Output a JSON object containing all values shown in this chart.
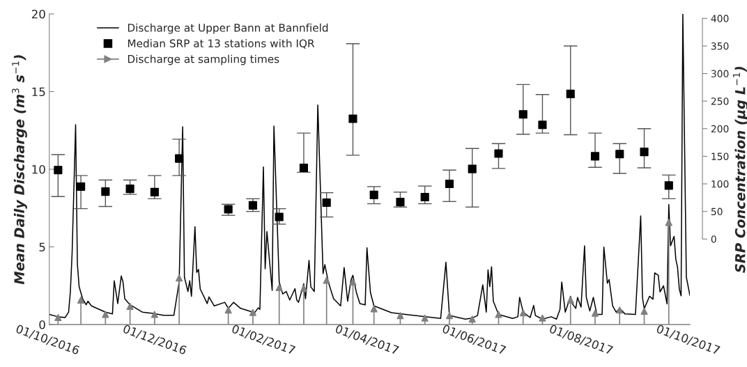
{
  "chart_data": {
    "type": "line",
    "ylabel": "Mean Daily Discharge (m$^{3}$ s$^{−1}$)",
    "y2label": "SRP Concentration (μg L$^{−1}$)",
    "xlim": [
      "2016-10-01",
      "2017-10-01"
    ],
    "xticks": [
      {
        "value": "2016-10-01",
        "label": "01/10/2016"
      },
      {
        "value": "2016-12-01",
        "label": "01/12/2016"
      },
      {
        "value": "2017-02-01",
        "label": "01/02/2017"
      },
      {
        "value": "2017-04-01",
        "label": "01/04/2017"
      },
      {
        "value": "2017-06-01",
        "label": "01/06/2017"
      },
      {
        "value": "2017-08-01",
        "label": "01/08/2017"
      },
      {
        "value": "2017-10-01",
        "label": "01/10/2017"
      }
    ],
    "ylim": [
      0,
      20
    ],
    "yticks": [
      0,
      5,
      10,
      15,
      20
    ],
    "y2lim": [
      -155,
      408
    ],
    "y2ticks": [
      0,
      50,
      100,
      150,
      200,
      250,
      300,
      350,
      400
    ],
    "grid": false,
    "legend": "top left",
    "series": [
      {
        "name": "Discharge at Upper Bann at Bannfield",
        "color": "#000000",
        "x": [
          "2016-10-01",
          "2016-10-06",
          "2016-10-10",
          "2016-10-12",
          "2016-10-13",
          "2016-10-14",
          "2016-10-16",
          "2016-10-17",
          "2016-10-18",
          "2016-10-20",
          "2016-10-22",
          "2016-10-23",
          "2016-10-25",
          "2016-11-02",
          "2016-11-06",
          "2016-11-07",
          "2016-11-09",
          "2016-11-11",
          "2016-11-12",
          "2016-11-13",
          "2016-11-16",
          "2016-11-23",
          "2016-11-29",
          "2016-12-05",
          "2016-12-11",
          "2016-12-14",
          "2016-12-16",
          "2016-12-17",
          "2016-12-19",
          "2016-12-20",
          "2016-12-21",
          "2016-12-23",
          "2016-12-24",
          "2016-12-25",
          "2016-12-26",
          "2016-12-30",
          "2016-12-31",
          "2017-01-03",
          "2017-01-09",
          "2017-01-11",
          "2017-01-14",
          "2017-01-18",
          "2017-01-26",
          "2017-01-28",
          "2017-01-29",
          "2017-01-31",
          "2017-02-01",
          "2017-02-02",
          "2017-02-05",
          "2017-02-06",
          "2017-02-09",
          "2017-02-11",
          "2017-02-13",
          "2017-02-15",
          "2017-02-18",
          "2017-02-19",
          "2017-02-20",
          "2017-02-23",
          "2017-02-24",
          "2017-02-26",
          "2017-02-27",
          "2017-03-01",
          "2017-03-03",
          "2017-03-06",
          "2017-03-07",
          "2017-03-09",
          "2017-03-12",
          "2017-03-16",
          "2017-03-18",
          "2017-03-20",
          "2017-03-22",
          "2017-03-23",
          "2017-03-25",
          "2017-03-27",
          "2017-03-30",
          "2017-03-31",
          "2017-04-02",
          "2017-04-04",
          "2017-04-14",
          "2017-04-22",
          "2017-05-12",
          "2017-05-15",
          "2017-05-17",
          "2017-05-26",
          "2017-05-30",
          "2017-06-02",
          "2017-06-05",
          "2017-06-07",
          "2017-06-08",
          "2017-06-09",
          "2017-06-10",
          "2017-06-11",
          "2017-06-14",
          "2017-06-22",
          "2017-06-25",
          "2017-06-26",
          "2017-06-28",
          "2017-07-02",
          "2017-07-04",
          "2017-07-05",
          "2017-07-09",
          "2017-07-14",
          "2017-07-17",
          "2017-07-19",
          "2017-07-20",
          "2017-07-22",
          "2017-07-25",
          "2017-07-26",
          "2017-07-28",
          "2017-07-29",
          "2017-07-31",
          "2017-08-02",
          "2017-08-03",
          "2017-08-05",
          "2017-08-07",
          "2017-08-09",
          "2017-08-12",
          "2017-08-13",
          "2017-08-15",
          "2017-08-16",
          "2017-08-18",
          "2017-08-20",
          "2017-08-22",
          "2017-08-25",
          "2017-08-31",
          "2017-09-03",
          "2017-09-04",
          "2017-09-05",
          "2017-09-08",
          "2017-09-10",
          "2017-09-11",
          "2017-09-13",
          "2017-09-14",
          "2017-09-16",
          "2017-09-18",
          "2017-09-19",
          "2017-09-20",
          "2017-09-22",
          "2017-09-23",
          "2017-09-24",
          "2017-09-25",
          "2017-09-26",
          "2017-09-27",
          "2017-09-29",
          "2017-10-01"
        ],
        "values": [
          0.65,
          0.5,
          0.45,
          0.8,
          2.1,
          4.6,
          12.87,
          3.9,
          2.43,
          1.66,
          1.27,
          1.5,
          1.2,
          0.8,
          0.69,
          2.82,
          1.35,
          3.13,
          2.74,
          1.66,
          1.27,
          0.8,
          0.72,
          0.6,
          0.6,
          2.74,
          12.74,
          3.05,
          2.13,
          2.82,
          1.82,
          6.3,
          3.36,
          3.55,
          2.29,
          1.35,
          1.78,
          1.2,
          1.43,
          1.04,
          1.43,
          1.04,
          0.76,
          1.07,
          0.98,
          10.15,
          3.59,
          5.99,
          2.2,
          12.78,
          2.74,
          1.97,
          2.13,
          1.58,
          2.31,
          1.58,
          1.43,
          2.62,
          1.66,
          4.13,
          2.43,
          2.13,
          14.14,
          3.28,
          3.86,
          2.74,
          1.66,
          1.2,
          3.67,
          1.5,
          2.9,
          3.17,
          2.05,
          1.35,
          1.27,
          4.94,
          2.05,
          1.2,
          0.76,
          0.65,
          0.39,
          4.01,
          0.58,
          0.35,
          0.42,
          0.58,
          2.56,
          0.8,
          3.52,
          2.44,
          3.72,
          1.5,
          0.65,
          0.39,
          0.5,
          1.75,
          0.8,
          0.45,
          1.23,
          0.58,
          0.35,
          0.5,
          0.35,
          0.98,
          2.74,
          0.8,
          1.82,
          1.35,
          1.04,
          1.75,
          1.12,
          5.07,
          1.75,
          0.87,
          1.75,
          0.65,
          0.65,
          4.99,
          2.66,
          2.9,
          1.2,
          0.8,
          1.04,
          0.69,
          0.65,
          7.0,
          1.75,
          1.02,
          1.82,
          1.63,
          3.33,
          3.17,
          2.1,
          2.49,
          1.33,
          7.72,
          5.07,
          5.68,
          4.21,
          3.67,
          2.28,
          1.85,
          20,
          3.05,
          1.89
        ]
      },
      {
        "name": "Median SRP at 13 stations with IQR",
        "type": "scatter",
        "axis": "y2",
        "marker": "square",
        "color": "#000000",
        "x": [
          "2016-10-06",
          "2016-10-19",
          "2016-11-02",
          "2016-11-16",
          "2016-11-30",
          "2016-12-14",
          "2017-01-11",
          "2017-01-25",
          "2017-02-09",
          "2017-02-23",
          "2017-03-08",
          "2017-03-23",
          "2017-04-04",
          "2017-04-19",
          "2017-05-03",
          "2017-05-17",
          "2017-05-30",
          "2017-06-14",
          "2017-06-28",
          "2017-07-09",
          "2017-07-25",
          "2017-08-08",
          "2017-08-22",
          "2017-09-05",
          "2017-09-19"
        ],
        "values": [
          125,
          95,
          86,
          91,
          85,
          146,
          54,
          61,
          40,
          129,
          66,
          218,
          80,
          67,
          76,
          100,
          127,
          155,
          226,
          207,
          263,
          150,
          154,
          158,
          97
        ],
        "errors": [
          [
            77,
            153
          ],
          [
            55,
            115
          ],
          [
            59,
            107
          ],
          [
            81,
            107
          ],
          [
            73,
            115
          ],
          [
            115,
            181
          ],
          [
            43,
            63
          ],
          [
            50,
            73
          ],
          [
            27,
            55
          ],
          [
            121,
            192
          ],
          [
            40,
            84
          ],
          [
            152,
            354
          ],
          [
            64,
            95
          ],
          [
            58,
            85
          ],
          [
            64,
            96
          ],
          [
            68,
            125
          ],
          [
            58,
            164
          ],
          [
            128,
            173
          ],
          [
            190,
            280
          ],
          [
            192,
            262
          ],
          [
            189,
            350
          ],
          [
            130,
            192
          ],
          [
            119,
            173
          ],
          [
            129,
            200
          ],
          [
            73,
            116
          ]
        ]
      },
      {
        "name": "Discharge at sampling times",
        "type": "lollipop",
        "marker": "triangle",
        "color": "#808080",
        "x": [
          "2016-10-06",
          "2016-10-19",
          "2016-11-02",
          "2016-11-16",
          "2016-11-30",
          "2016-12-14",
          "2017-01-11",
          "2017-01-25",
          "2017-02-09",
          "2017-02-23",
          "2017-03-08",
          "2017-03-23",
          "2017-04-04",
          "2017-04-19",
          "2017-05-03",
          "2017-05-17",
          "2017-05-30",
          "2017-06-14",
          "2017-06-28",
          "2017-07-09",
          "2017-07-25",
          "2017-08-08",
          "2017-08-22",
          "2017-09-05",
          "2017-09-19"
        ],
        "values": [
          0.45,
          1.58,
          0.65,
          1.17,
          0.65,
          3.0,
          0.93,
          0.78,
          2.38,
          2.33,
          2.85,
          2.74,
          1.01,
          0.58,
          0.42,
          0.58,
          0.35,
          0.65,
          0.76,
          0.42,
          1.58,
          0.73,
          0.93,
          0.86,
          6.58
        ]
      }
    ]
  }
}
